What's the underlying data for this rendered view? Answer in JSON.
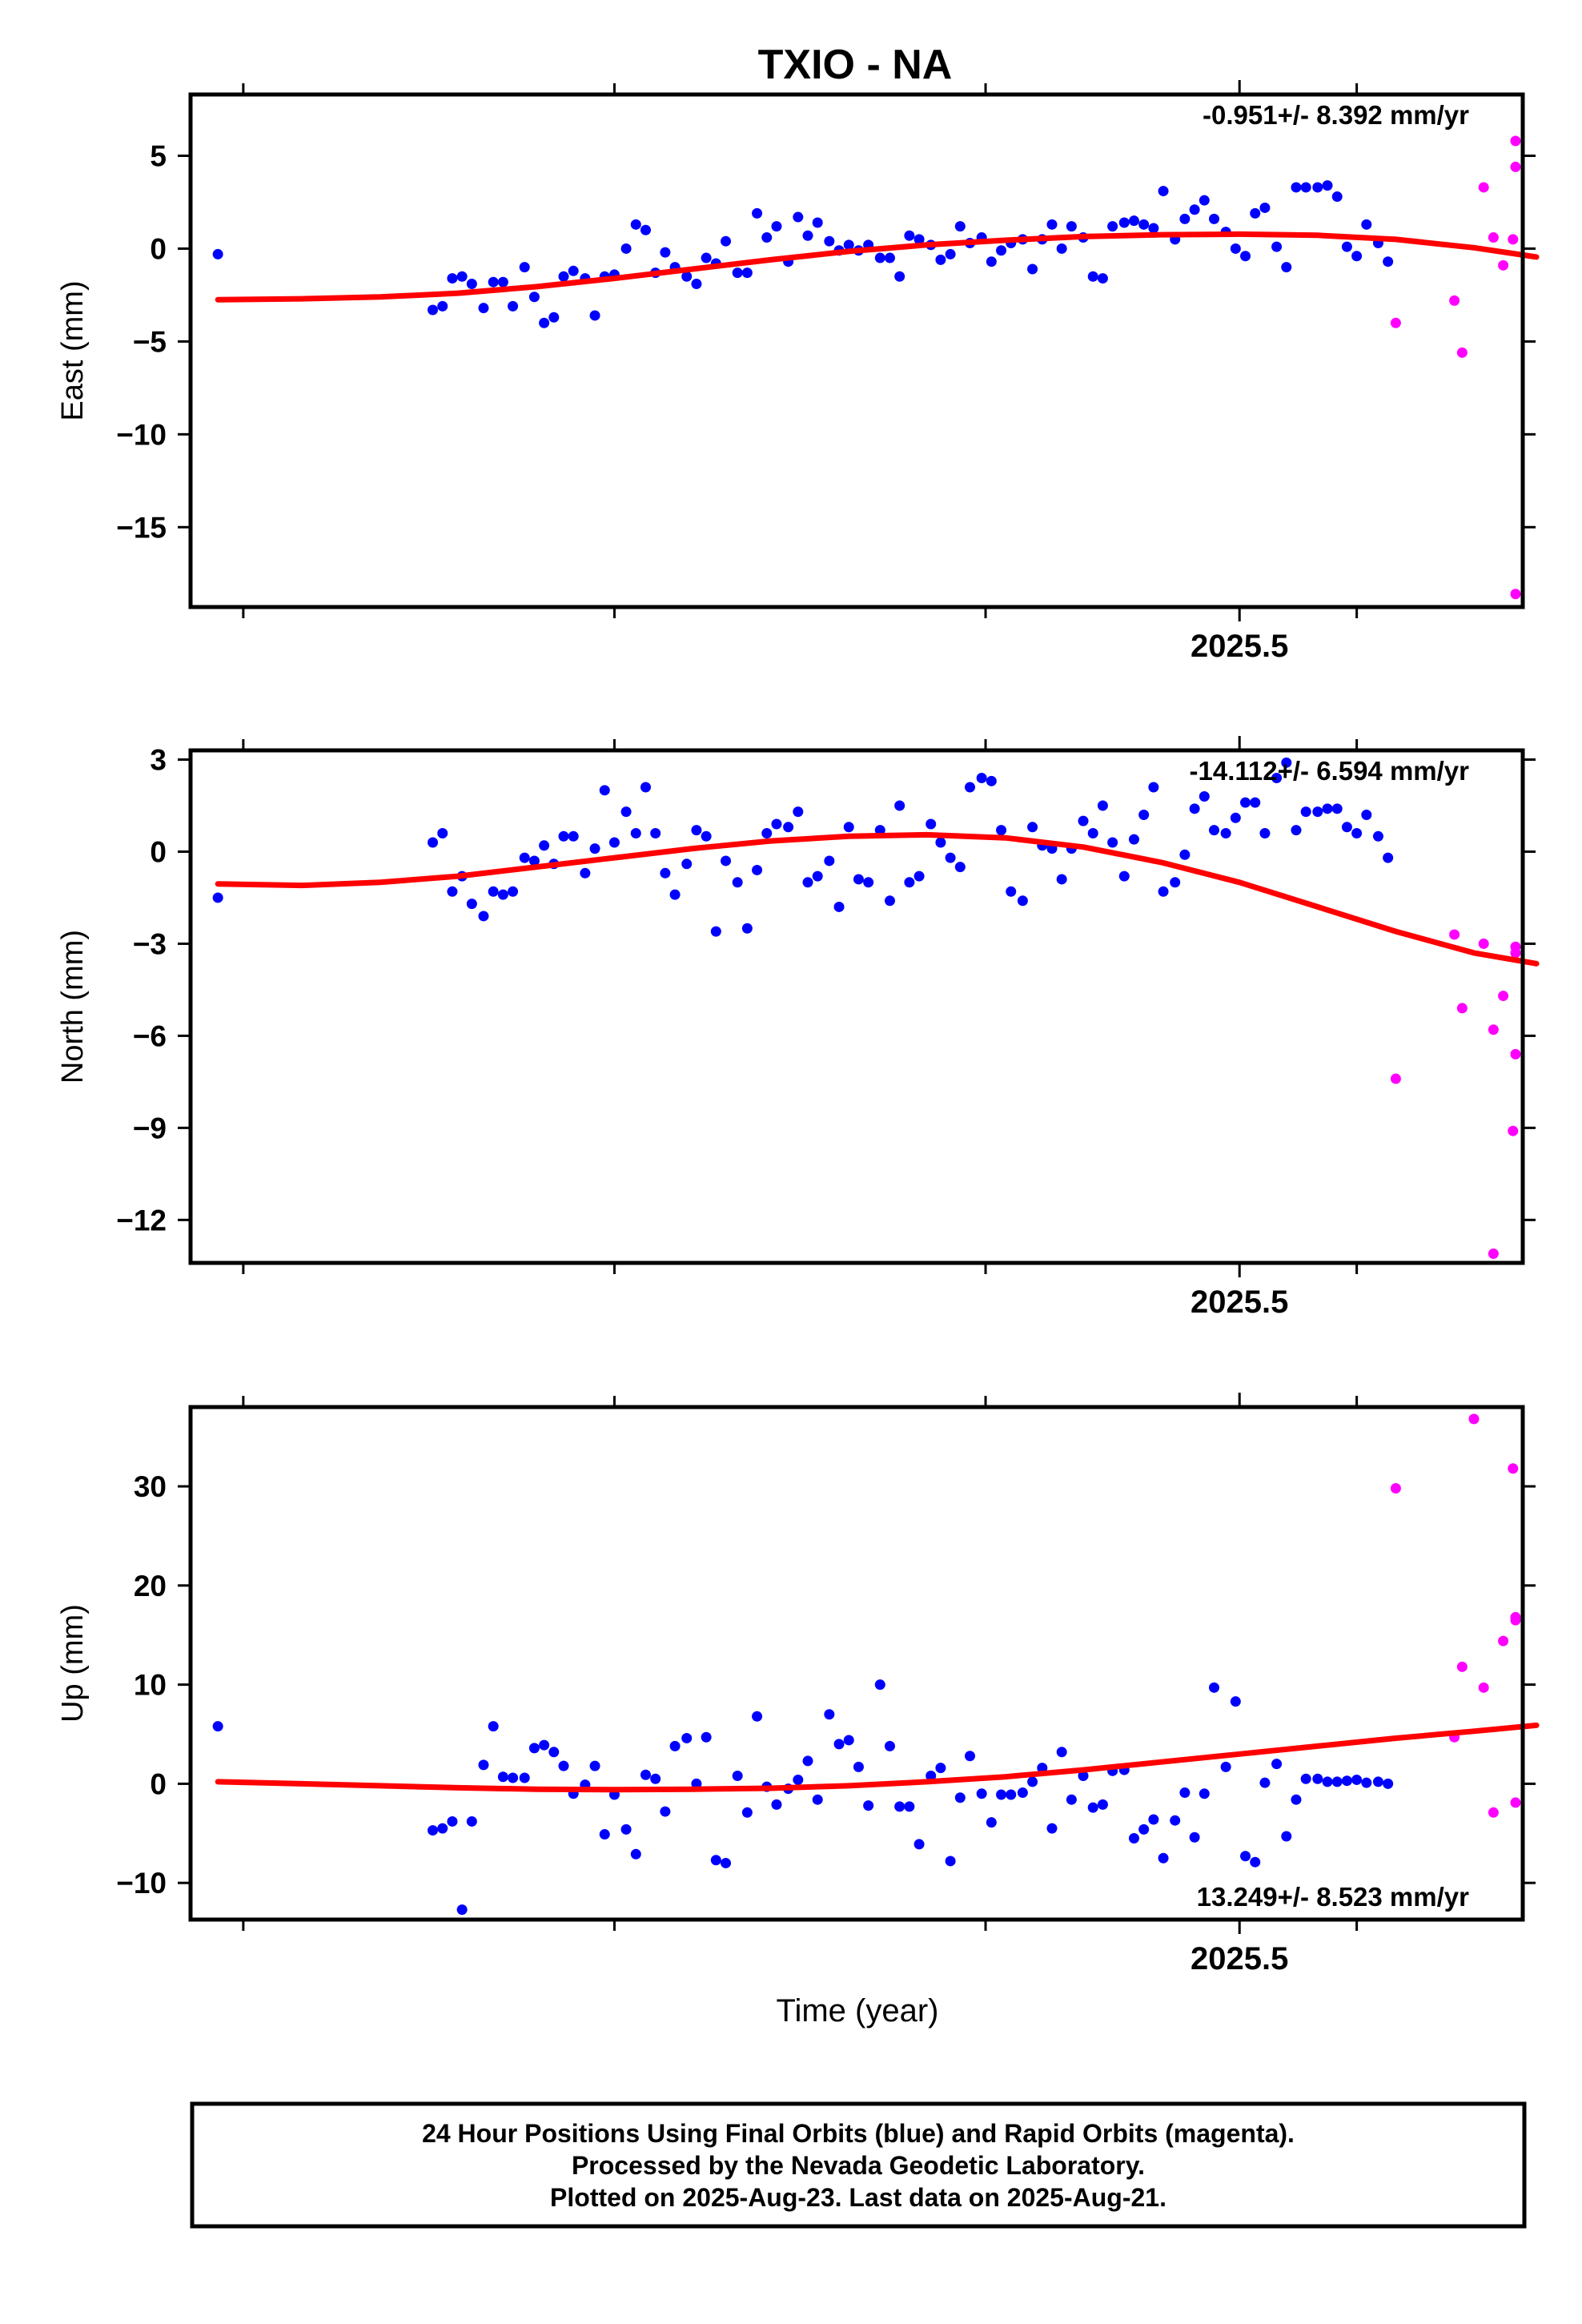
{
  "figure": {
    "title": "TXIO - NA",
    "xlabel": "Time (year)",
    "footer": [
      "24 Hour Positions Using Final Orbits (blue) and Rapid Orbits (magenta).",
      "Processed by the Nevada Geodetic Laboratory.",
      "Plotted on 2025-Aug-23. Last data on 2025-Aug-21."
    ]
  },
  "colors": {
    "final": "#0000ff",
    "rapid": "#ff00ff",
    "fit": "#ff0000",
    "axes": "#000000"
  },
  "chart_data": [
    {
      "type": "scatter",
      "component": "east",
      "ylabel": "East (mm)",
      "rate_label": "-0.951+/- 8.392 mm/yr",
      "xlim": [
        2024.963,
        2025.645
      ],
      "ylim": [
        -19.3,
        8.3
      ],
      "x_ticks": [
        2025.5
      ],
      "x_tick_labels": [
        "2025.5"
      ],
      "minor_x_ticks": [
        2024.99,
        2025.18,
        2025.37,
        2025.56
      ],
      "y_ticks": [
        5,
        0,
        -5,
        -10,
        -15
      ],
      "y_tick_labels": [
        "5",
        "0",
        "−5",
        "−10",
        "−15"
      ],
      "series": [
        {
          "kind": "final",
          "x": [
            2024.977,
            2025.087,
            2025.092,
            2025.097,
            2025.102,
            2025.107,
            2025.113,
            2025.118,
            2025.123,
            2025.128,
            2025.134,
            2025.139,
            2025.144,
            2025.149,
            2025.154,
            2025.159,
            2025.165,
            2025.17,
            2025.175,
            2025.18,
            2025.186,
            2025.191,
            2025.196,
            2025.201,
            2025.206,
            2025.211,
            2025.217,
            2025.222,
            2025.227,
            2025.232,
            2025.237,
            2025.243,
            2025.248,
            2025.253,
            2025.258,
            2025.263,
            2025.269,
            2025.274,
            2025.279,
            2025.284,
            2025.29,
            2025.295,
            2025.3,
            2025.305,
            2025.31,
            2025.316,
            2025.321,
            2025.326,
            2025.331,
            2025.336,
            2025.342,
            2025.347,
            2025.352,
            2025.357,
            2025.362,
            2025.368,
            2025.373,
            2025.378,
            2025.383,
            2025.389,
            2025.394,
            2025.399,
            2025.404,
            2025.409,
            2025.414,
            2025.42,
            2025.425,
            2025.43,
            2025.435,
            2025.441,
            2025.446,
            2025.451,
            2025.456,
            2025.461,
            2025.467,
            2025.472,
            2025.477,
            2025.482,
            2025.487,
            2025.493,
            2025.498,
            2025.503,
            2025.508,
            2025.513,
            2025.519,
            2025.524,
            2025.529,
            2025.534,
            2025.54,
            2025.545,
            2025.55,
            2025.555,
            2025.56,
            2025.565,
            2025.571,
            2025.576
          ],
          "y": [
            -0.3,
            -3.3,
            -3.1,
            -1.6,
            -1.5,
            -1.9,
            -3.2,
            -1.8,
            -1.8,
            -3.1,
            -1.0,
            -2.6,
            -4.0,
            -3.7,
            -1.5,
            -1.2,
            -1.6,
            -3.6,
            -1.5,
            -1.4,
            0.0,
            1.3,
            1.0,
            -1.3,
            -0.2,
            -1.0,
            -1.5,
            -1.9,
            -0.5,
            -0.8,
            0.4,
            -1.3,
            -1.3,
            1.9,
            0.6,
            1.2,
            -0.7,
            1.7,
            0.7,
            1.4,
            0.4,
            -0.1,
            0.2,
            -0.1,
            0.2,
            -0.5,
            -0.5,
            -1.5,
            0.7,
            0.5,
            0.2,
            -0.6,
            -0.3,
            1.2,
            0.3,
            0.6,
            -0.7,
            -0.1,
            0.3,
            0.5,
            -1.1,
            0.5,
            1.3,
            0.0,
            1.2,
            0.6,
            -1.5,
            -1.6,
            1.2,
            1.4,
            1.5,
            1.3,
            1.1,
            3.1,
            0.5,
            1.6,
            2.1,
            2.6,
            1.6,
            0.9,
            0.0,
            -0.4,
            1.9,
            2.2,
            0.1,
            -1.0,
            3.3,
            3.3,
            3.3,
            3.4,
            2.8,
            0.1,
            -0.4,
            1.3,
            0.3,
            -0.7
          ]
        },
        {
          "kind": "rapid",
          "x": [
            2025.58,
            2025.61,
            2025.614,
            2025.625,
            2025.63,
            2025.635,
            2025.64,
            2025.643,
            2025.647
          ],
          "y": [
            -4.0,
            -2.8,
            -5.6,
            3.3,
            0.6,
            -0.9,
            0.5,
            -18.6,
            4.4
          ]
        },
        {
          "kind": "rapid",
          "x": [
            2025.652
          ],
          "y": [
            5.8
          ]
        }
      ],
      "fit": {
        "x": [
          2024.977,
          2025.02,
          2025.06,
          2025.1,
          2025.14,
          2025.18,
          2025.22,
          2025.26,
          2025.3,
          2025.34,
          2025.38,
          2025.42,
          2025.46,
          2025.5,
          2025.54,
          2025.58,
          2025.62,
          2025.652
        ],
        "y": [
          -2.75,
          -2.7,
          -2.6,
          -2.4,
          -2.05,
          -1.6,
          -1.1,
          -0.6,
          -0.15,
          0.2,
          0.45,
          0.65,
          0.75,
          0.78,
          0.72,
          0.5,
          0.05,
          -0.45
        ]
      }
    },
    {
      "type": "scatter",
      "component": "north",
      "ylabel": "North (mm)",
      "rate_label": "-14.112+/- 6.594 mm/yr",
      "xlim": [
        2024.963,
        2025.645
      ],
      "ylim": [
        -13.4,
        3.3
      ],
      "x_ticks": [
        2025.5
      ],
      "x_tick_labels": [
        "2025.5"
      ],
      "minor_x_ticks": [
        2024.99,
        2025.18,
        2025.37,
        2025.56
      ],
      "y_ticks": [
        3,
        0,
        -3,
        -6,
        -9,
        -12
      ],
      "y_tick_labels": [
        "3",
        "0",
        "−3",
        "−6",
        "−9",
        "−12"
      ],
      "series": [
        {
          "kind": "final",
          "x": [
            2024.977,
            2025.087,
            2025.092,
            2025.097,
            2025.102,
            2025.107,
            2025.113,
            2025.118,
            2025.123,
            2025.128,
            2025.134,
            2025.139,
            2025.144,
            2025.149,
            2025.154,
            2025.159,
            2025.165,
            2025.17,
            2025.175,
            2025.18,
            2025.186,
            2025.191,
            2025.196,
            2025.201,
            2025.206,
            2025.211,
            2025.217,
            2025.222,
            2025.227,
            2025.232,
            2025.237,
            2025.243,
            2025.248,
            2025.253,
            2025.258,
            2025.263,
            2025.269,
            2025.274,
            2025.279,
            2025.284,
            2025.29,
            2025.295,
            2025.3,
            2025.305,
            2025.31,
            2025.316,
            2025.321,
            2025.326,
            2025.331,
            2025.336,
            2025.342,
            2025.347,
            2025.352,
            2025.357,
            2025.362,
            2025.368,
            2025.373,
            2025.378,
            2025.383,
            2025.389,
            2025.394,
            2025.399,
            2025.404,
            2025.409,
            2025.414,
            2025.42,
            2025.425,
            2025.43,
            2025.435,
            2025.441,
            2025.446,
            2025.451,
            2025.456,
            2025.461,
            2025.467,
            2025.472,
            2025.477,
            2025.482,
            2025.487,
            2025.493,
            2025.498,
            2025.503,
            2025.508,
            2025.513,
            2025.519,
            2025.524,
            2025.529,
            2025.534,
            2025.54,
            2025.545,
            2025.55,
            2025.555,
            2025.56,
            2025.565,
            2025.571,
            2025.576
          ],
          "y": [
            -1.5,
            0.3,
            0.6,
            -1.3,
            -0.8,
            -1.7,
            -2.1,
            -1.3,
            -1.4,
            -1.3,
            -0.2,
            -0.3,
            0.2,
            -0.4,
            0.5,
            0.5,
            -0.7,
            0.1,
            2.0,
            0.3,
            1.3,
            0.6,
            2.1,
            0.6,
            -0.7,
            -1.4,
            -0.4,
            0.7,
            0.5,
            -2.6,
            -0.3,
            -1.0,
            -2.5,
            -0.6,
            0.6,
            0.9,
            0.8,
            1.3,
            -1.0,
            -0.8,
            -0.3,
            -1.8,
            0.8,
            -0.9,
            -1.0,
            0.7,
            -1.6,
            1.5,
            -1.0,
            -0.8,
            0.9,
            0.3,
            -0.2,
            -0.5,
            2.1,
            2.4,
            2.3,
            0.7,
            -1.3,
            -1.6,
            0.8,
            0.2,
            0.1,
            -0.9,
            0.1,
            1.0,
            0.6,
            1.5,
            0.3,
            -0.8,
            0.4,
            1.2,
            2.1,
            -1.3,
            -1.0,
            -0.1,
            1.4,
            1.8,
            0.7,
            0.6,
            1.1,
            1.6,
            1.6,
            0.6,
            2.4,
            2.9,
            0.7,
            1.3,
            1.3,
            1.4,
            1.4,
            0.8,
            0.6,
            1.2,
            0.5,
            -0.2
          ]
        },
        {
          "kind": "rapid",
          "x": [
            2025.58,
            2025.61,
            2025.614,
            2025.625,
            2025.63,
            2025.635,
            2025.64,
            2025.643,
            2025.647
          ],
          "y": [
            -7.4,
            -2.7,
            -5.1,
            -3.0,
            -5.8,
            -4.7,
            -9.1,
            -6.6,
            -3.1
          ]
        },
        {
          "kind": "rapid",
          "x": [
            2025.63,
            2025.652
          ],
          "y": [
            -13.1,
            -3.3
          ]
        }
      ],
      "fit": {
        "x": [
          2024.977,
          2025.02,
          2025.06,
          2025.1,
          2025.14,
          2025.18,
          2025.22,
          2025.26,
          2025.3,
          2025.34,
          2025.38,
          2025.42,
          2025.46,
          2025.5,
          2025.54,
          2025.58,
          2025.62,
          2025.652
        ],
        "y": [
          -1.05,
          -1.1,
          -1.0,
          -0.8,
          -0.5,
          -0.2,
          0.1,
          0.35,
          0.5,
          0.55,
          0.45,
          0.15,
          -0.35,
          -1.0,
          -1.8,
          -2.6,
          -3.3,
          -3.65
        ]
      }
    },
    {
      "type": "scatter",
      "component": "up",
      "ylabel": "Up (mm)",
      "rate_label": "13.249+/- 8.523 mm/yr",
      "xlim": [
        2024.963,
        2025.645
      ],
      "ylim": [
        -13.7,
        38.0
      ],
      "x_ticks": [
        2025.5
      ],
      "x_tick_labels": [
        "2025.5"
      ],
      "minor_x_ticks": [
        2024.99,
        2025.18,
        2025.37,
        2025.56
      ],
      "y_ticks": [
        30,
        20,
        10,
        0,
        -10
      ],
      "y_tick_labels": [
        "30",
        "20",
        "10",
        "0",
        "−10"
      ],
      "series": [
        {
          "kind": "final",
          "x": [
            2024.977,
            2025.087,
            2025.092,
            2025.097,
            2025.102,
            2025.107,
            2025.113,
            2025.118,
            2025.123,
            2025.128,
            2025.134,
            2025.139,
            2025.144,
            2025.149,
            2025.154,
            2025.159,
            2025.165,
            2025.17,
            2025.175,
            2025.18,
            2025.186,
            2025.191,
            2025.196,
            2025.201,
            2025.206,
            2025.211,
            2025.217,
            2025.222,
            2025.227,
            2025.232,
            2025.237,
            2025.243,
            2025.248,
            2025.253,
            2025.258,
            2025.263,
            2025.269,
            2025.274,
            2025.279,
            2025.284,
            2025.29,
            2025.295,
            2025.3,
            2025.305,
            2025.31,
            2025.316,
            2025.321,
            2025.326,
            2025.331,
            2025.336,
            2025.342,
            2025.347,
            2025.352,
            2025.357,
            2025.362,
            2025.368,
            2025.373,
            2025.378,
            2025.383,
            2025.389,
            2025.394,
            2025.399,
            2025.404,
            2025.409,
            2025.414,
            2025.42,
            2025.425,
            2025.43,
            2025.435,
            2025.441,
            2025.446,
            2025.451,
            2025.456,
            2025.461,
            2025.467,
            2025.472,
            2025.477,
            2025.482,
            2025.487,
            2025.493,
            2025.498,
            2025.503,
            2025.508,
            2025.513,
            2025.519,
            2025.524,
            2025.529,
            2025.534,
            2025.54,
            2025.545,
            2025.55,
            2025.555,
            2025.56,
            2025.565,
            2025.571,
            2025.576
          ],
          "y": [
            5.8,
            -4.7,
            -4.5,
            -3.8,
            -12.7,
            -3.8,
            1.9,
            5.8,
            0.7,
            0.6,
            0.6,
            3.6,
            3.9,
            3.2,
            1.8,
            -1.0,
            -0.1,
            1.8,
            -5.1,
            -1.1,
            -4.6,
            -7.1,
            0.9,
            0.5,
            -2.8,
            3.8,
            4.6,
            0.0,
            4.7,
            -7.7,
            -8.0,
            0.8,
            -2.9,
            6.8,
            -0.3,
            -2.1,
            -0.5,
            0.4,
            2.3,
            -1.6,
            7.0,
            4.0,
            4.4,
            1.7,
            -2.2,
            10.0,
            3.8,
            -2.3,
            -2.3,
            -6.1,
            0.8,
            1.6,
            -7.8,
            -1.4,
            2.8,
            -1.0,
            -3.9,
            -1.1,
            -1.1,
            -0.9,
            0.2,
            1.6,
            -4.5,
            3.2,
            -1.6,
            0.8,
            -2.4,
            -2.1,
            1.3,
            1.4,
            -5.5,
            -4.6,
            -3.6,
            -7.5,
            -3.7,
            -0.9,
            -5.4,
            -1.0,
            9.7,
            1.7,
            8.3,
            -7.3,
            -7.9,
            0.1,
            2.0,
            -5.3,
            -1.6,
            0.5,
            0.5,
            0.2,
            0.2,
            0.3,
            0.4,
            0.1,
            0.2,
            0.0
          ]
        },
        {
          "kind": "rapid",
          "x": [
            2025.58,
            2025.61,
            2025.614,
            2025.625,
            2025.63,
            2025.635,
            2025.64,
            2025.643,
            2025.647
          ],
          "y": [
            29.8,
            4.7,
            11.8,
            9.7,
            -2.9,
            14.4,
            31.8,
            16.8,
            16.5
          ]
        },
        {
          "kind": "rapid",
          "x": [
            2025.62,
            2025.652
          ],
          "y": [
            36.8,
            -1.9
          ]
        }
      ],
      "fit": {
        "x": [
          2024.977,
          2025.02,
          2025.06,
          2025.1,
          2025.14,
          2025.18,
          2025.22,
          2025.26,
          2025.3,
          2025.34,
          2025.38,
          2025.42,
          2025.46,
          2025.5,
          2025.54,
          2025.58,
          2025.62,
          2025.652
        ],
        "y": [
          0.2,
          0.0,
          -0.2,
          -0.4,
          -0.55,
          -0.6,
          -0.55,
          -0.45,
          -0.2,
          0.2,
          0.7,
          1.4,
          2.2,
          3.0,
          3.8,
          4.6,
          5.3,
          5.9
        ]
      }
    }
  ]
}
